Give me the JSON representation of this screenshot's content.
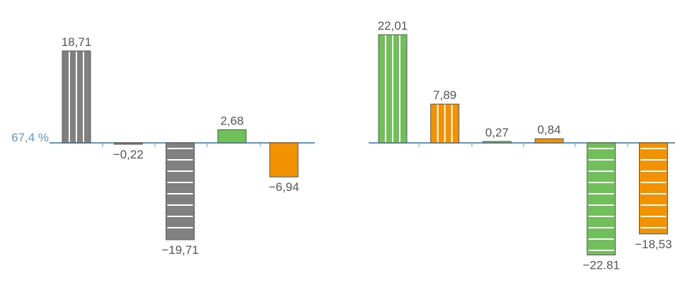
{
  "baseline_label": "67,4 %",
  "colors": {
    "axis": "#5b9bd5",
    "baseline_label": "#5b9bd5",
    "gray": "#808080",
    "green": "#70bf5a",
    "orange": "#f39200",
    "label": "#555555",
    "stroke": "#595959"
  },
  "chart_data": [
    {
      "type": "bar",
      "title": "",
      "baseline": 67.4,
      "values": [
        18.71,
        -0.22,
        -19.71,
        2.68,
        -6.94
      ],
      "value_labels": [
        "18,71",
        "−0,22",
        "−19,71",
        "2,68",
        "−6,94"
      ],
      "colors": [
        "gray",
        "gray",
        "gray",
        "green",
        "orange"
      ],
      "patterns": [
        "vertical",
        "vertical",
        "horizontal",
        "none",
        "none"
      ]
    },
    {
      "type": "bar",
      "title": "",
      "baseline": 67.4,
      "values": [
        22.01,
        7.89,
        0.27,
        0.84,
        -22.81,
        -18.53
      ],
      "value_labels": [
        "22,01",
        "7,89",
        "0,27",
        "0,84",
        "−22.81",
        "−18,53"
      ],
      "colors": [
        "green",
        "orange",
        "green",
        "orange",
        "green",
        "orange"
      ],
      "patterns": [
        "vertical",
        "vertical",
        "vertical",
        "vertical",
        "horizontal",
        "horizontal"
      ]
    }
  ]
}
